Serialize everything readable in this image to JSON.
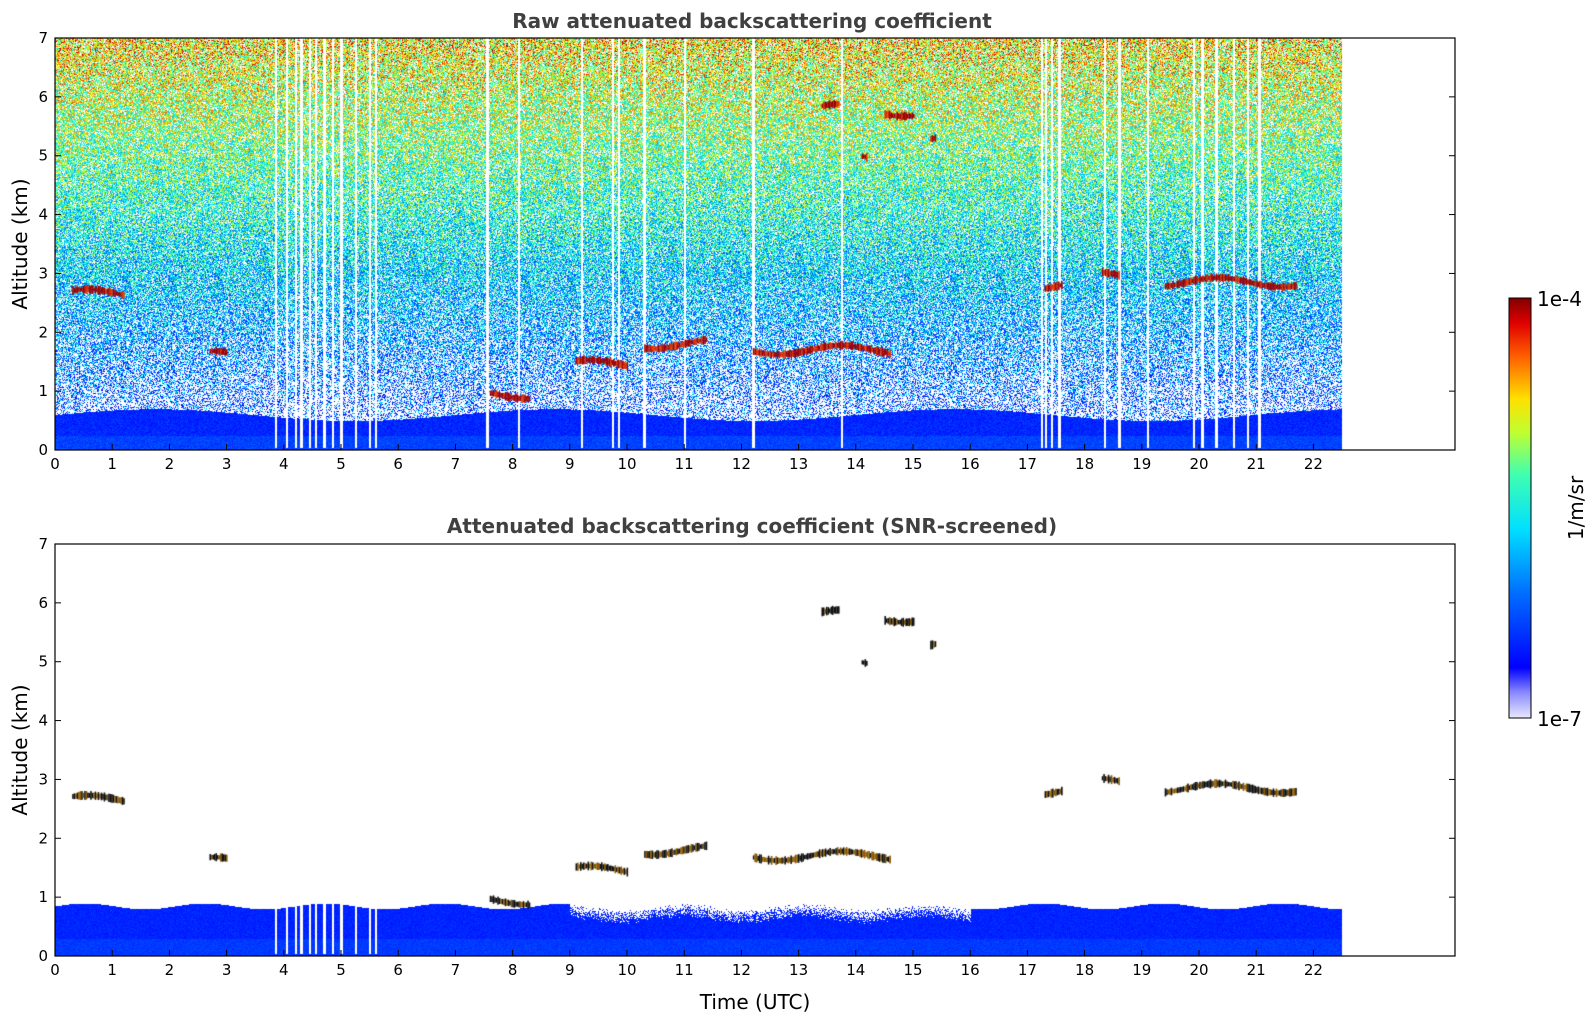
{
  "chart_data": [
    {
      "type": "heatmap",
      "title": "Raw attenuated backscattering coefficient",
      "xlabel": "",
      "ylabel": "Altitude (km)",
      "xlim": [
        0,
        24
      ],
      "ylim": [
        0,
        7
      ],
      "xticks": [
        "0",
        "1",
        "2",
        "3",
        "4",
        "5",
        "6",
        "7",
        "8",
        "9",
        "10",
        "11",
        "12",
        "13",
        "14",
        "15",
        "16",
        "17",
        "18",
        "19",
        "20",
        "21",
        "22"
      ],
      "yticks": [
        "0",
        "1",
        "2",
        "3",
        "4",
        "5",
        "6",
        "7"
      ],
      "data_end_time": 22.5,
      "boundary_layer_top_km": 0.6,
      "cloud_layers": [
        {
          "t_start": 0.3,
          "t_end": 1.2,
          "alt_km": 2.65
        },
        {
          "t_start": 2.7,
          "t_end": 3.0,
          "alt_km": 1.6
        },
        {
          "t_start": 7.6,
          "t_end": 8.3,
          "alt_km": 0.95
        },
        {
          "t_start": 9.1,
          "t_end": 10.0,
          "alt_km": 1.45
        },
        {
          "t_start": 10.3,
          "t_end": 11.4,
          "alt_km": 1.8
        },
        {
          "t_start": 12.2,
          "t_end": 14.6,
          "alt_km": 1.7
        },
        {
          "t_start": 13.4,
          "t_end": 13.7,
          "alt_km": 5.8
        },
        {
          "t_start": 14.1,
          "t_end": 14.2,
          "alt_km": 4.95
        },
        {
          "t_start": 14.5,
          "t_end": 15.0,
          "alt_km": 5.75
        },
        {
          "t_start": 15.3,
          "t_end": 15.4,
          "alt_km": 5.3
        },
        {
          "t_start": 17.3,
          "t_end": 17.6,
          "alt_km": 2.8
        },
        {
          "t_start": 18.3,
          "t_end": 18.6,
          "alt_km": 2.95
        },
        {
          "t_start": 19.4,
          "t_end": 21.7,
          "alt_km": 2.85
        }
      ]
    },
    {
      "type": "heatmap",
      "title": "Attenuated backscattering coefficient (SNR-screened)",
      "xlabel": "Time (UTC)",
      "ylabel": "Altitude (km)",
      "xlim": [
        0,
        24
      ],
      "ylim": [
        0,
        7
      ],
      "xticks": [
        "0",
        "1",
        "2",
        "3",
        "4",
        "5",
        "6",
        "7",
        "8",
        "9",
        "10",
        "11",
        "12",
        "13",
        "14",
        "15",
        "16",
        "17",
        "18",
        "19",
        "20",
        "21",
        "22"
      ],
      "yticks": [
        "0",
        "1",
        "2",
        "3",
        "4",
        "5",
        "6",
        "7"
      ],
      "data_end_time": 22.5,
      "screened_layer_top_km": 0.85
    }
  ],
  "colorbar": {
    "label": "1/m/sr",
    "max_label": "1e-4",
    "min_label": "1e-7",
    "scale": "log",
    "range": [
      1e-07,
      0.0001
    ]
  }
}
